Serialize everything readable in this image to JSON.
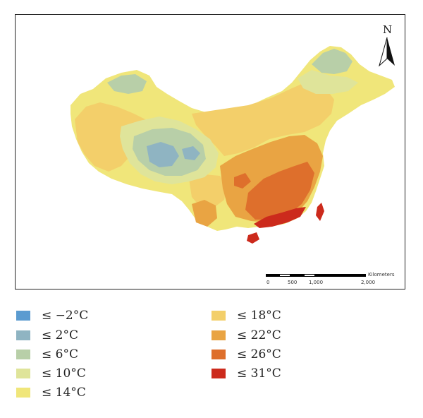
{
  "map": {
    "north_label": "N",
    "scale_bar": {
      "unit_label": "Kilometers",
      "ticks": [
        "0",
        "500",
        "1,000",
        "2,000"
      ]
    }
  },
  "legend": {
    "items": [
      {
        "label": "≤ −2°C",
        "color": "#5b9bd0"
      },
      {
        "label": "≤ 2°C",
        "color": "#8fb4c2"
      },
      {
        "label": "≤ 6°C",
        "color": "#b8cfa8"
      },
      {
        "label": "≤ 10°C",
        "color": "#dfe49a"
      },
      {
        "label": "≤ 14°C",
        "color": "#f0e67a"
      },
      {
        "label": "≤ 18°C",
        "color": "#f3cf6a"
      },
      {
        "label": "≤ 22°C",
        "color": "#e9a443"
      },
      {
        "label": "≤ 26°C",
        "color": "#de6f2c"
      },
      {
        "label": "≤ 31°C",
        "color": "#cc2a1c"
      }
    ]
  }
}
